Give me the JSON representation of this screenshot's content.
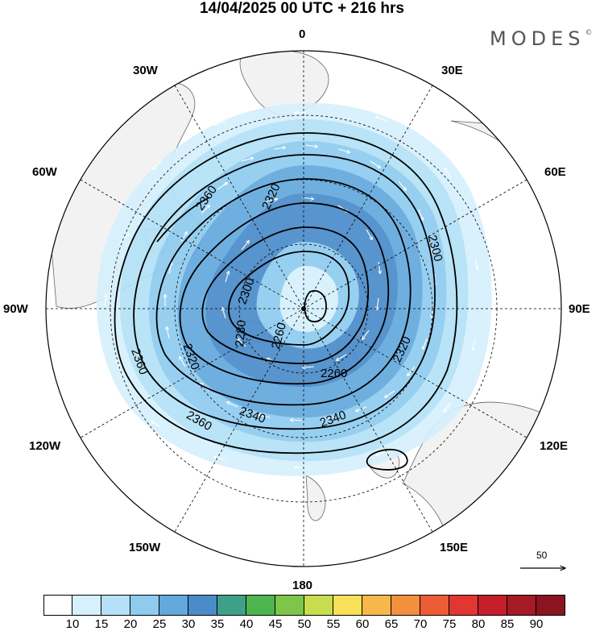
{
  "header": {
    "title": "14/04/2025  00 UTC  + 216 hrs",
    "brand": "MODES",
    "brand_mark": "©"
  },
  "map": {
    "projection": "polar-stereographic-north",
    "center_lat": 90,
    "longitude_labels": {
      "top": "0",
      "top_right": "30E",
      "right_upper": "60E",
      "right": "90E",
      "right_lower": "120E",
      "bottom_right": "150E",
      "bottom": "180",
      "bottom_left": "150W",
      "left_lower": "120W",
      "left": "90W",
      "left_upper": "60W",
      "top_left": "30W"
    },
    "contour_labels": [
      "2360",
      "2320",
      "2300",
      "2280",
      "2260",
      "2260",
      "2320",
      "2340",
      "2360",
      "2340",
      "2320",
      "2300",
      "2360"
    ],
    "land_color": "#f2f2f2",
    "shade_colors": [
      "#d9f0fb",
      "#b3e0f6",
      "#8ccbef",
      "#63a9dd",
      "#4a8cc9"
    ]
  },
  "vector_reference": {
    "value": "50"
  },
  "colorbar": {
    "ticks": [
      "10",
      "15",
      "20",
      "25",
      "30",
      "35",
      "40",
      "45",
      "50",
      "55",
      "60",
      "65",
      "70",
      "75",
      "80",
      "85",
      "90"
    ],
    "colors": [
      "#ffffff",
      "#d6f0fc",
      "#b4e1f7",
      "#8fcbef",
      "#63a9dd",
      "#4a8cc9",
      "#3fa08a",
      "#4db54d",
      "#7dc64a",
      "#c8dd4e",
      "#f8e158",
      "#f6b84a",
      "#f2903d",
      "#ec5d36",
      "#e23633",
      "#c41e2b",
      "#a51a24",
      "#8a1520"
    ]
  }
}
